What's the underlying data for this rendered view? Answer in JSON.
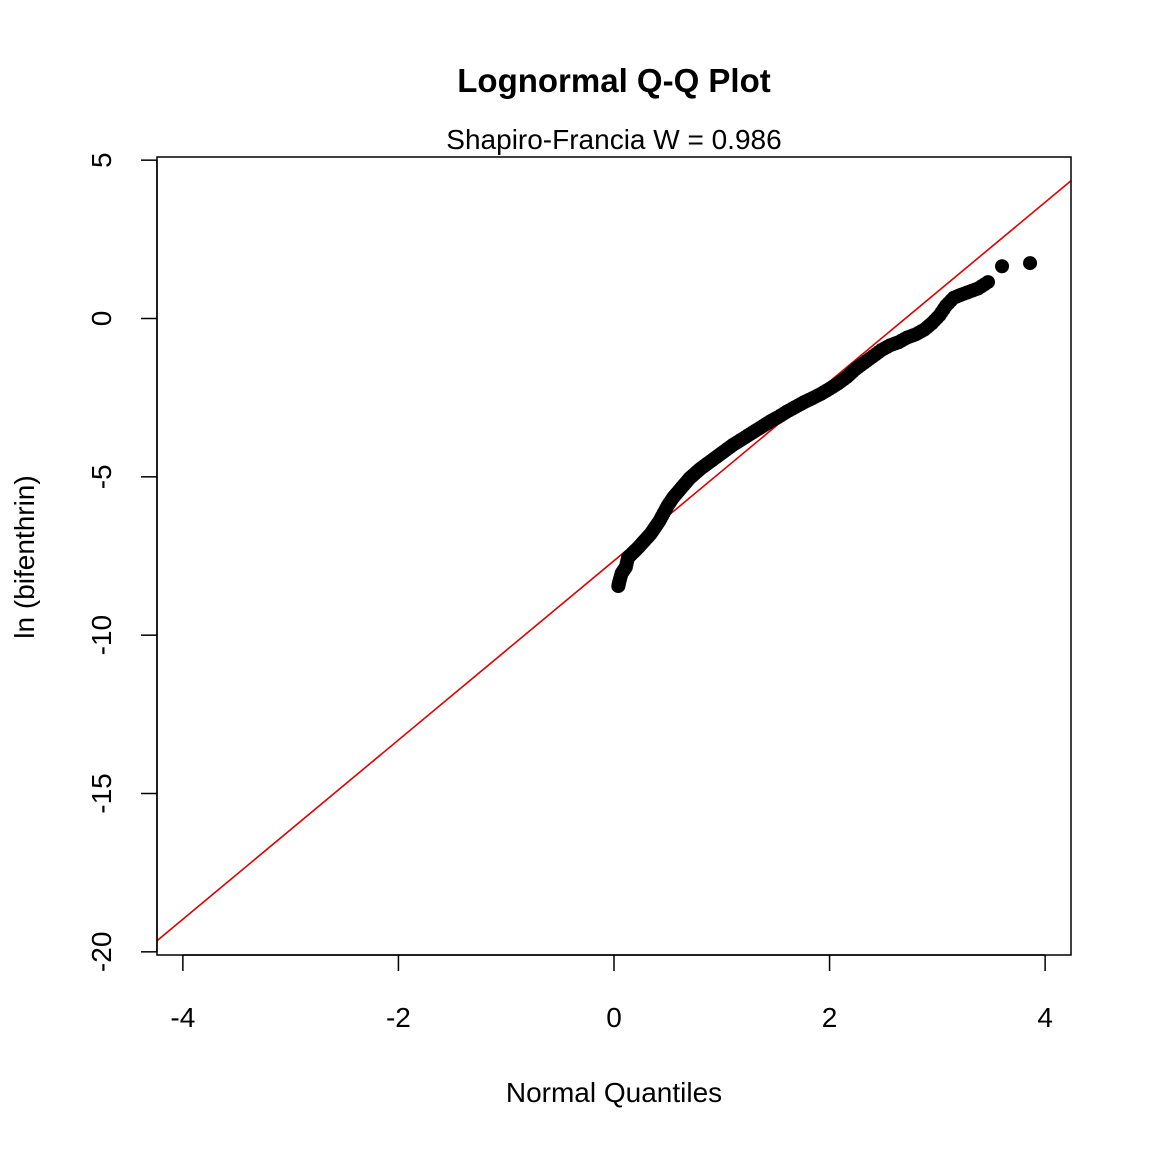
{
  "chart_data": {
    "type": "scatter",
    "title": "Lognormal Q-Q Plot",
    "subtitle": "Shapiro-Francia W = 0.986",
    "xlabel": "Normal Quantiles",
    "ylabel": "ln (bifenthrin)",
    "xlim": [
      -4.24,
      4.24
    ],
    "ylim": [
      -20.1,
      5.1
    ],
    "x_ticks": [
      -4,
      -2,
      0,
      2,
      4
    ],
    "x_tick_labels": [
      "-4",
      "-2",
      "0",
      "2",
      "4"
    ],
    "y_ticks": [
      -20,
      -15,
      -10,
      -5,
      0,
      5
    ],
    "y_tick_labels": [
      "-20",
      "-15",
      "-10",
      "-5",
      "0",
      "5"
    ],
    "grid": false,
    "legend": "none",
    "colors": {
      "points": "#000000",
      "reference_line": "#dd0000",
      "axes": "#000000"
    },
    "reference_line": {
      "intercept": -7.65,
      "slope": 2.83
    },
    "series": [
      {
        "x": [
          0.04,
          0.05,
          0.07,
          0.09,
          0.11,
          0.13,
          0.16,
          0.19,
          0.22,
          0.26,
          0.3,
          0.34,
          0.38,
          0.42,
          0.46,
          0.5,
          0.55,
          0.6,
          0.65,
          0.7,
          0.75,
          0.8,
          0.86,
          0.92,
          0.98,
          1.04,
          1.1,
          1.17,
          1.24,
          1.31,
          1.38,
          1.45,
          1.52,
          1.6,
          1.68,
          1.76,
          1.84,
          1.92,
          2.0,
          2.08,
          2.16,
          2.24,
          2.32,
          2.4,
          2.48,
          2.56,
          2.64,
          2.72,
          2.8,
          2.88,
          2.95,
          3.02,
          3.08,
          3.15,
          3.22,
          3.3,
          3.38,
          3.47,
          3.6,
          3.86
        ],
        "y": [
          -8.45,
          -8.3,
          -8.05,
          -7.95,
          -7.85,
          -7.55,
          -7.45,
          -7.35,
          -7.25,
          -7.1,
          -6.95,
          -6.8,
          -6.6,
          -6.4,
          -6.15,
          -5.9,
          -5.65,
          -5.45,
          -5.25,
          -5.05,
          -4.9,
          -4.75,
          -4.6,
          -4.45,
          -4.3,
          -4.15,
          -4.0,
          -3.85,
          -3.7,
          -3.55,
          -3.4,
          -3.25,
          -3.12,
          -2.95,
          -2.8,
          -2.65,
          -2.52,
          -2.38,
          -2.22,
          -2.05,
          -1.85,
          -1.6,
          -1.4,
          -1.2,
          -1.0,
          -0.85,
          -0.75,
          -0.6,
          -0.5,
          -0.35,
          -0.15,
          0.1,
          0.4,
          0.65,
          0.75,
          0.85,
          0.95,
          1.15,
          1.65,
          1.75
        ]
      }
    ]
  }
}
